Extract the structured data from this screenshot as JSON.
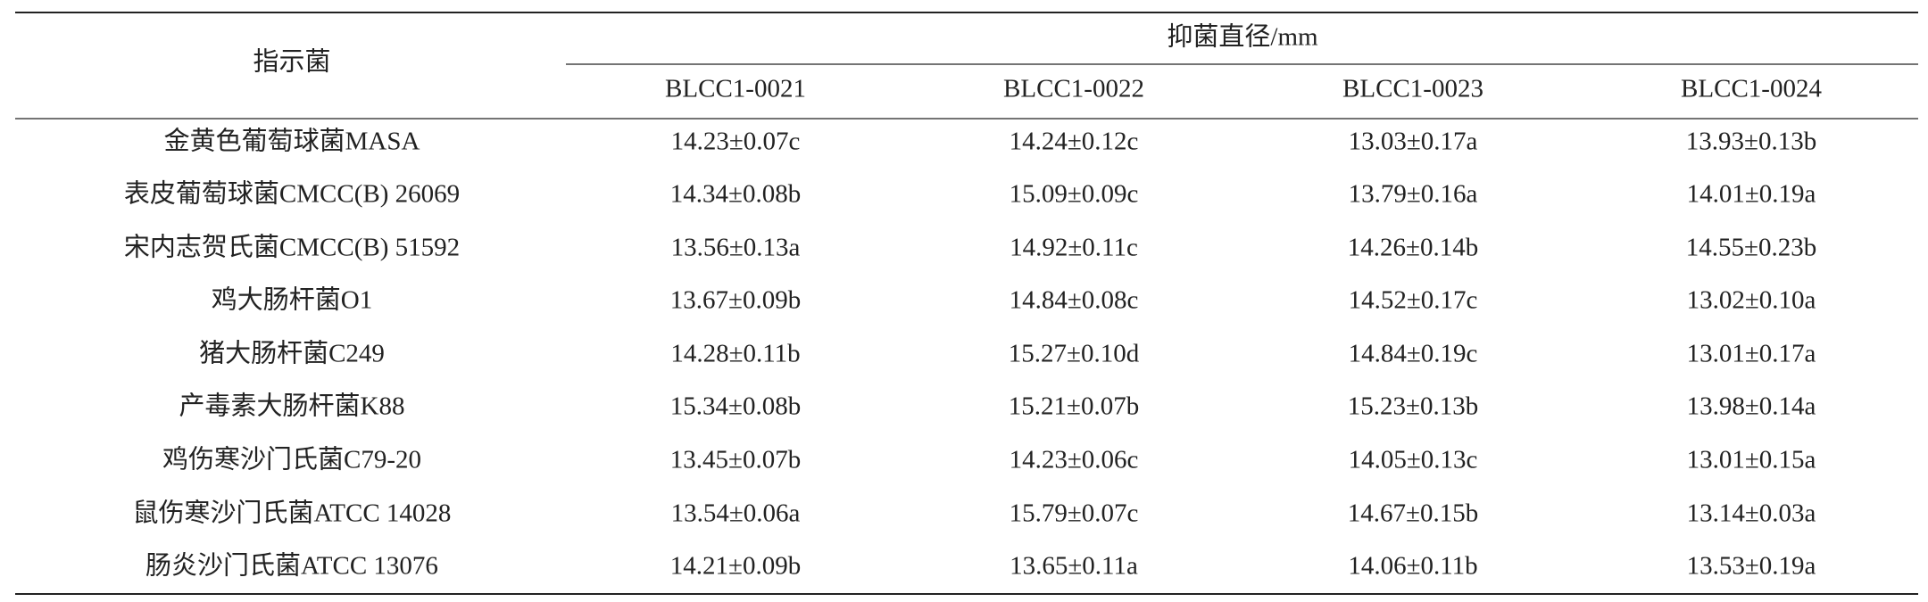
{
  "table": {
    "header": {
      "indicator": "指示菌",
      "group": "抑菌直径/mm",
      "columns": [
        "BLCC1-0021",
        "BLCC1-0022",
        "BLCC1-0023",
        "BLCC1-0024"
      ]
    },
    "rows": [
      [
        "金黄色葡萄球菌MASA",
        "14.23±0.07c",
        "14.24±0.12c",
        "13.03±0.17a",
        "13.93±0.13b"
      ],
      [
        "表皮葡萄球菌CMCC(B) 26069",
        "14.34±0.08b",
        "15.09±0.09c",
        "13.79±0.16a",
        "14.01±0.19a"
      ],
      [
        "宋内志贺氏菌CMCC(B) 51592",
        "13.56±0.13a",
        "14.92±0.11c",
        "14.26±0.14b",
        "14.55±0.23b"
      ],
      [
        "鸡大肠杆菌O1",
        "13.67±0.09b",
        "14.84±0.08c",
        "14.52±0.17c",
        "13.02±0.10a"
      ],
      [
        "猪大肠杆菌C249",
        "14.28±0.11b",
        "15.27±0.10d",
        "14.84±0.19c",
        "13.01±0.17a"
      ],
      [
        "产毒素大肠杆菌K88",
        "15.34±0.08b",
        "15.21±0.07b",
        "15.23±0.13b",
        "13.98±0.14a"
      ],
      [
        "鸡伤寒沙门氏菌C79-20",
        "13.45±0.07b",
        "14.23±0.06c",
        "14.05±0.13c",
        "13.01±0.15a"
      ],
      [
        "鼠伤寒沙门氏菌ATCC 14028",
        "13.54±0.06a",
        "15.79±0.07c",
        "14.67±0.15b",
        "13.14±0.03a"
      ],
      [
        "肠炎沙门氏菌ATCC 13076",
        "14.21±0.09b",
        "13.65±0.11a",
        "14.06±0.11b",
        "13.53±0.19a"
      ]
    ]
  }
}
